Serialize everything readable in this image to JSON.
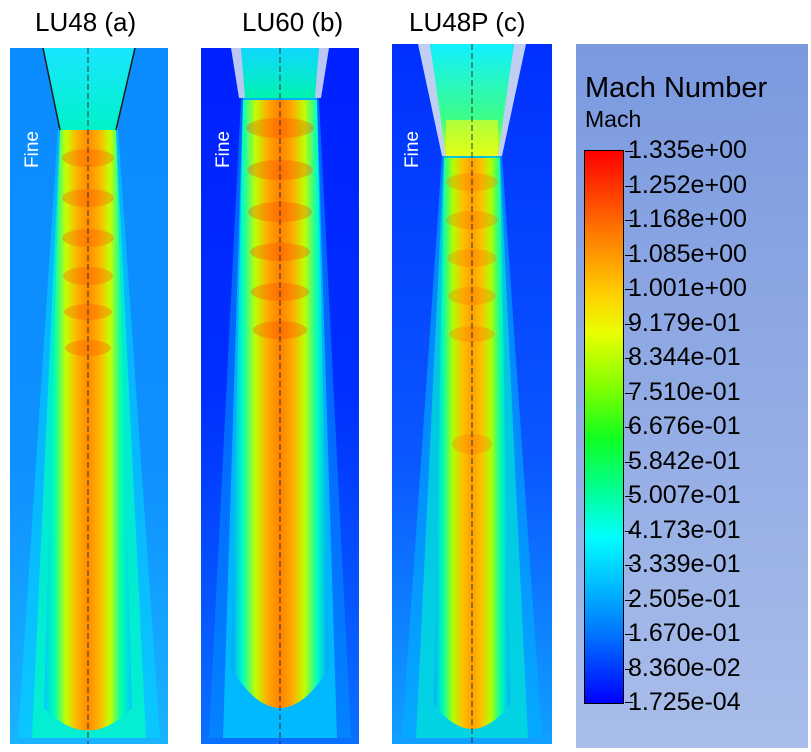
{
  "panels": [
    {
      "title": "LU48 (a)",
      "mesh_label": "Fine"
    },
    {
      "title": "LU60 (b)",
      "mesh_label": "Fine"
    },
    {
      "title": "LU48P (c)",
      "mesh_label": "Fine"
    }
  ],
  "legend": {
    "title": "Mach Number",
    "subtitle": "Mach",
    "values": [
      "1.335e+00",
      "1.252e+00",
      "1.168e+00",
      "1.085e+00",
      "1.001e+00",
      "9.179e-01",
      "8.344e-01",
      "7.510e-01",
      "6.676e-01",
      "5.842e-01",
      "5.007e-01",
      "4.173e-01",
      "3.339e-01",
      "2.505e-01",
      "1.670e-01",
      "8.360e-02",
      "1.725e-04"
    ],
    "colors": {
      "max": "#ff0000",
      "high": "#ff8a00",
      "mid": "#ffff00",
      "green": "#00ff40",
      "cyan": "#00ffff",
      "low": "#0000ff"
    }
  }
}
